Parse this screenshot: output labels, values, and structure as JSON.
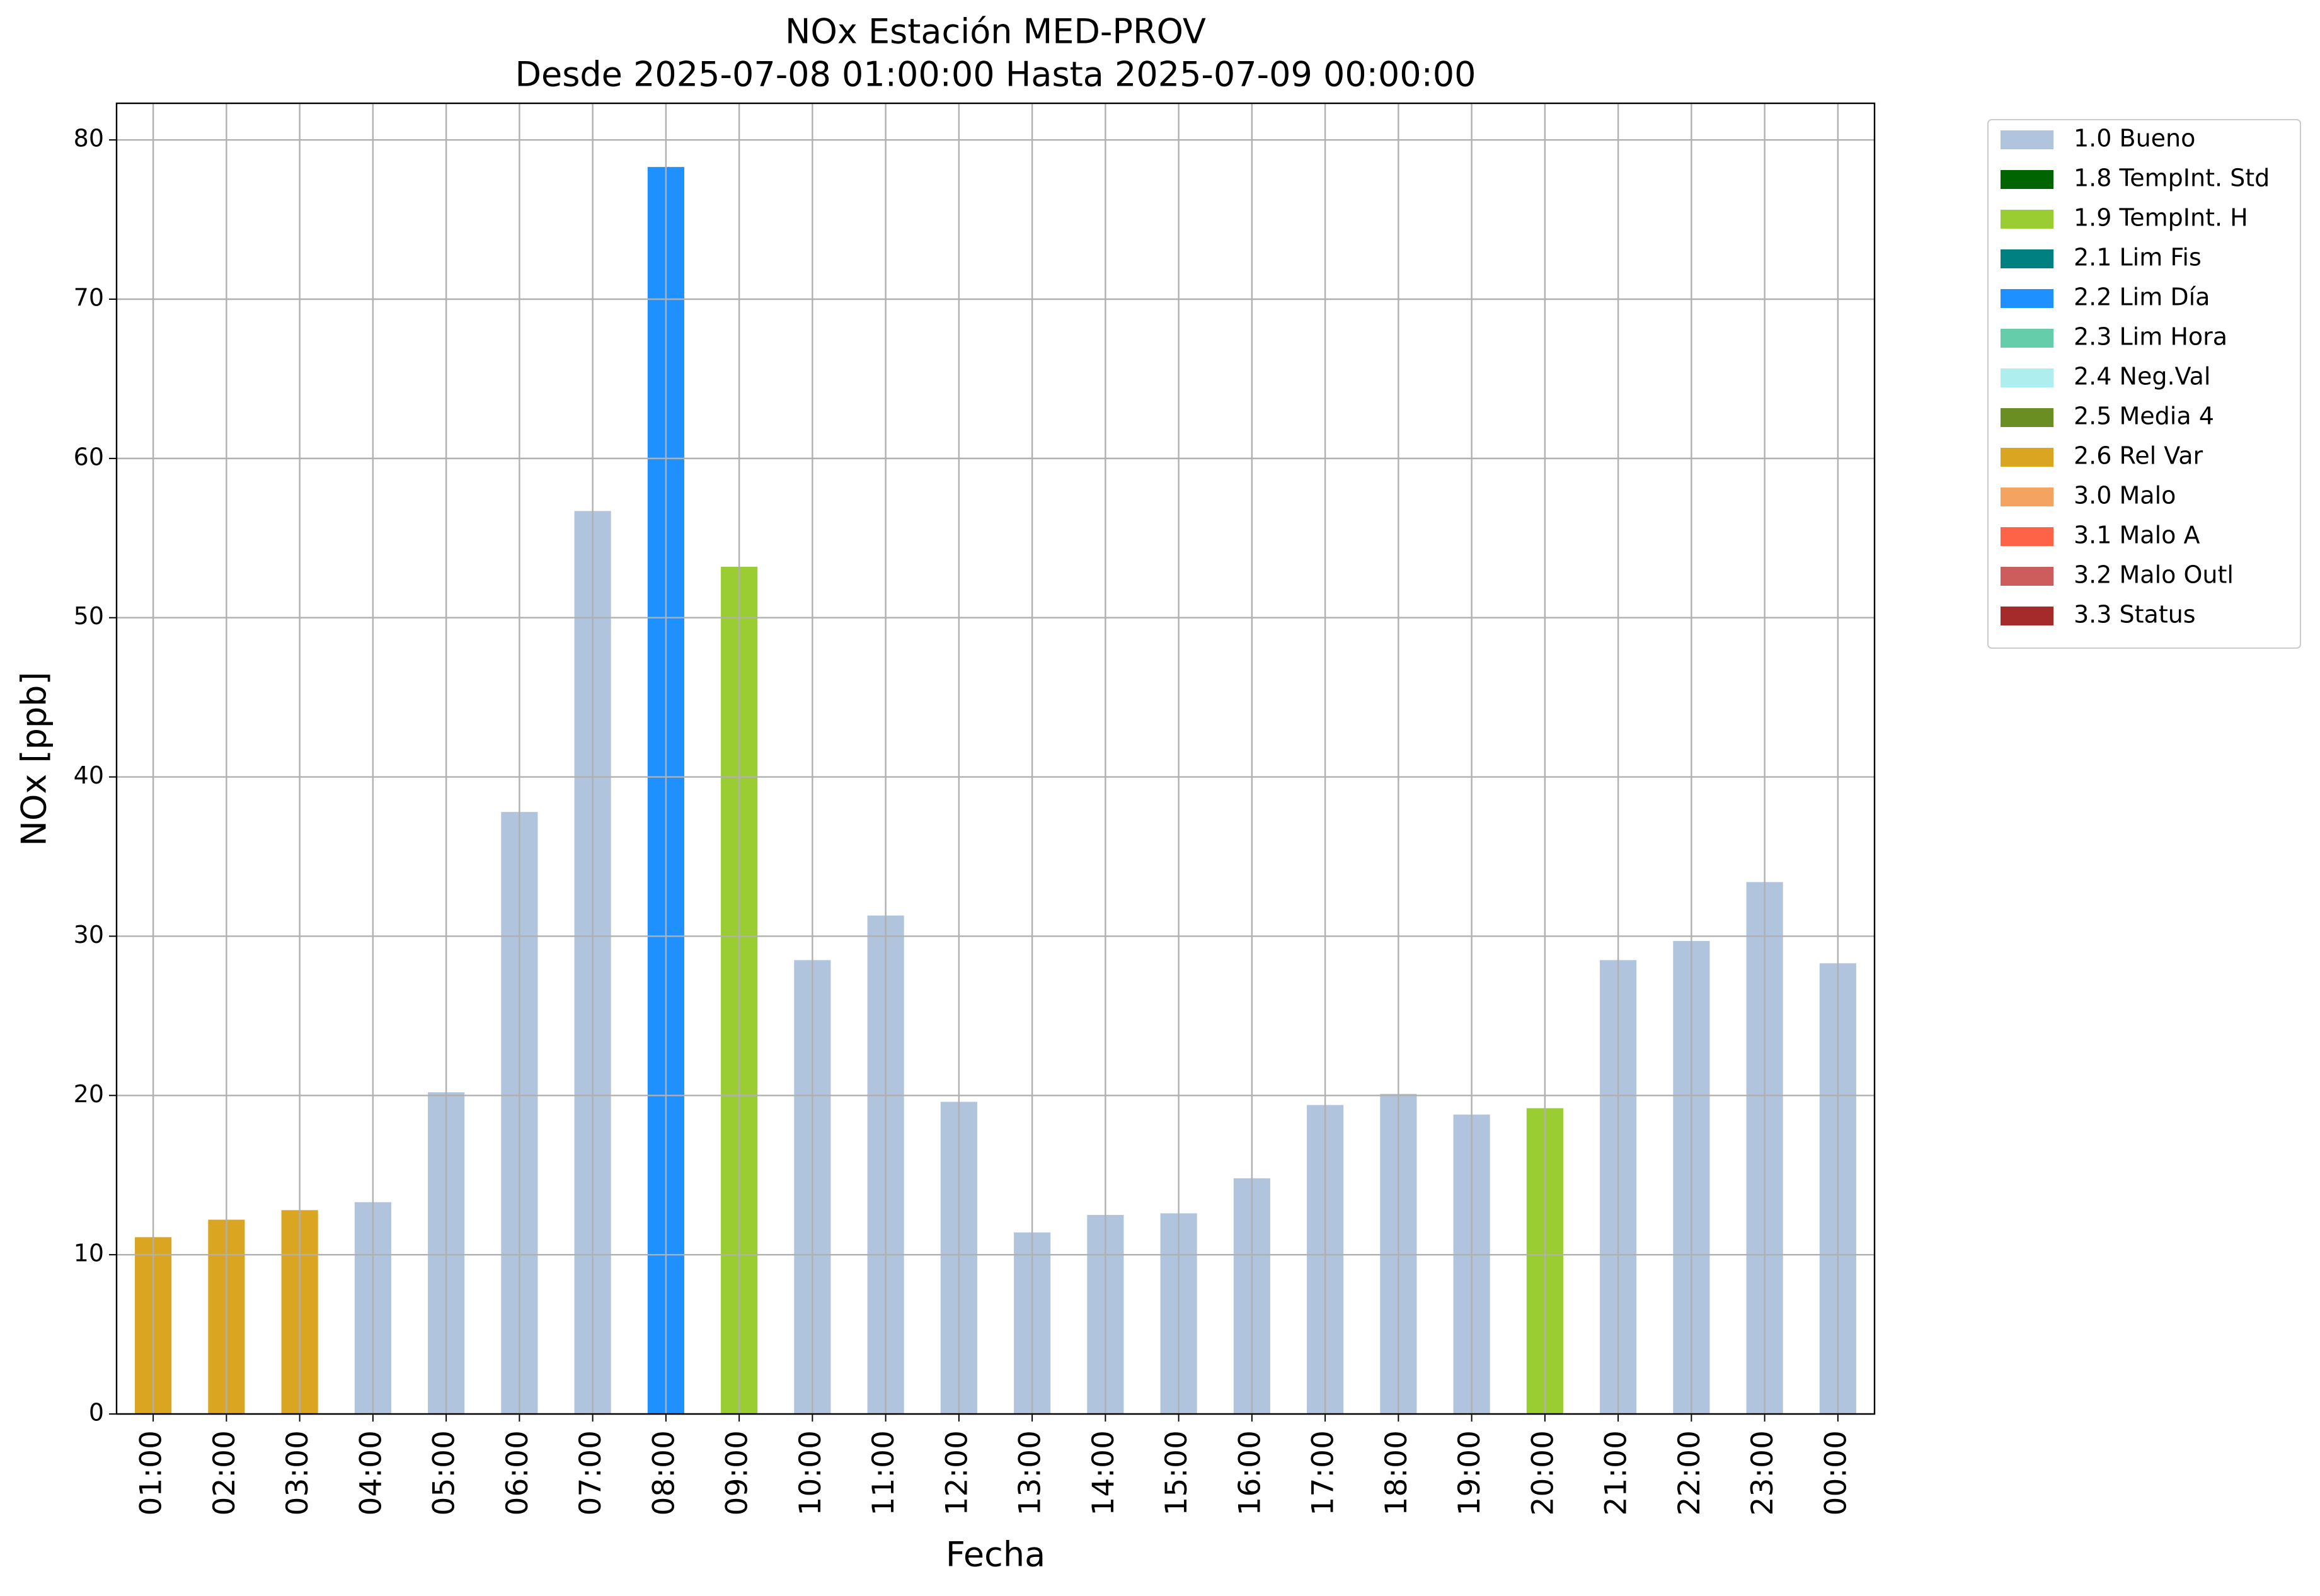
{
  "chart_data": {
    "type": "bar",
    "stacked": true,
    "title": "NOx Estación MED-PROV",
    "subtitle": "Desde 2025-07-08 01:00:00 Hasta 2025-07-09 00:00:00",
    "x_label": "Fecha",
    "y_label": "NOx [ppb]",
    "categories": [
      "01:00",
      "02:00",
      "03:00",
      "04:00",
      "05:00",
      "06:00",
      "07:00",
      "08:00",
      "09:00",
      "10:00",
      "11:00",
      "12:00",
      "13:00",
      "14:00",
      "15:00",
      "16:00",
      "17:00",
      "18:00",
      "19:00",
      "20:00",
      "21:00",
      "22:00",
      "23:00",
      "00:00"
    ],
    "series": [
      {
        "name": "1.0 Bueno",
        "color": "#b0c4de",
        "values": [
          null,
          null,
          null,
          13.3,
          20.2,
          37.8,
          56.7,
          null,
          null,
          28.5,
          31.3,
          19.6,
          11.4,
          12.5,
          12.6,
          14.8,
          19.4,
          20.1,
          18.8,
          null,
          28.5,
          29.7,
          33.4,
          28.3
        ]
      },
      {
        "name": "1.8 TempInt. Std",
        "color": "#006400",
        "values": [
          null,
          null,
          null,
          null,
          null,
          null,
          null,
          null,
          null,
          null,
          null,
          null,
          null,
          null,
          null,
          null,
          null,
          null,
          null,
          null,
          null,
          null,
          null,
          null
        ]
      },
      {
        "name": "1.9 TempInt. H",
        "color": "#9acd32",
        "values": [
          null,
          null,
          null,
          null,
          null,
          null,
          null,
          null,
          53.2,
          null,
          null,
          null,
          null,
          null,
          null,
          null,
          null,
          null,
          null,
          19.2,
          null,
          null,
          null,
          null
        ]
      },
      {
        "name": "2.1 Lim Fis",
        "color": "#008080",
        "values": [
          null,
          null,
          null,
          null,
          null,
          null,
          null,
          null,
          null,
          null,
          null,
          null,
          null,
          null,
          null,
          null,
          null,
          null,
          null,
          null,
          null,
          null,
          null,
          null
        ]
      },
      {
        "name": "2.2 Lim Día",
        "color": "#1e90ff",
        "values": [
          null,
          null,
          null,
          null,
          null,
          null,
          null,
          78.3,
          null,
          null,
          null,
          null,
          null,
          null,
          null,
          null,
          null,
          null,
          null,
          null,
          null,
          null,
          null,
          null
        ]
      },
      {
        "name": "2.3 Lim Hora",
        "color": "#66cdaa",
        "values": [
          null,
          null,
          null,
          null,
          null,
          null,
          null,
          null,
          null,
          null,
          null,
          null,
          null,
          null,
          null,
          null,
          null,
          null,
          null,
          null,
          null,
          null,
          null,
          null
        ]
      },
      {
        "name": "2.4 Neg.Val",
        "color": "#afeeee",
        "values": [
          null,
          null,
          null,
          null,
          null,
          null,
          null,
          null,
          null,
          null,
          null,
          null,
          null,
          null,
          null,
          null,
          null,
          null,
          null,
          null,
          null,
          null,
          null,
          null
        ]
      },
      {
        "name": "2.5 Media 4",
        "color": "#6b8e23",
        "values": [
          null,
          null,
          null,
          null,
          null,
          null,
          null,
          null,
          null,
          null,
          null,
          null,
          null,
          null,
          null,
          null,
          null,
          null,
          null,
          null,
          null,
          null,
          null,
          null
        ]
      },
      {
        "name": "2.6 Rel Var",
        "color": "#daa520",
        "values": [
          11.1,
          12.2,
          12.8,
          null,
          null,
          null,
          null,
          null,
          null,
          null,
          null,
          null,
          null,
          null,
          null,
          null,
          null,
          null,
          null,
          null,
          null,
          null,
          null,
          null
        ]
      },
      {
        "name": "3.0 Malo",
        "color": "#f4a460",
        "values": [
          null,
          null,
          null,
          null,
          null,
          null,
          null,
          null,
          null,
          null,
          null,
          null,
          null,
          null,
          null,
          null,
          null,
          null,
          null,
          null,
          null,
          null,
          null,
          null
        ]
      },
      {
        "name": "3.1 Malo A",
        "color": "#ff6347",
        "values": [
          null,
          null,
          null,
          null,
          null,
          null,
          null,
          null,
          null,
          null,
          null,
          null,
          null,
          null,
          null,
          null,
          null,
          null,
          null,
          null,
          null,
          null,
          null,
          null
        ]
      },
      {
        "name": "3.2 Malo Outl",
        "color": "#cd5c5c",
        "values": [
          null,
          null,
          null,
          null,
          null,
          null,
          null,
          null,
          null,
          null,
          null,
          null,
          null,
          null,
          null,
          null,
          null,
          null,
          null,
          null,
          null,
          null,
          null,
          null
        ]
      },
      {
        "name": "3.3 Status",
        "color": "#a52a2a",
        "values": [
          null,
          null,
          null,
          null,
          null,
          null,
          null,
          null,
          null,
          null,
          null,
          null,
          null,
          null,
          null,
          null,
          null,
          null,
          null,
          null,
          null,
          null,
          null,
          null
        ]
      }
    ],
    "ylim": [
      0,
      82.3
    ],
    "yticks": [
      0,
      10,
      20,
      30,
      40,
      50,
      60,
      70,
      80
    ],
    "grid": true,
    "legend": "outside-right"
  }
}
